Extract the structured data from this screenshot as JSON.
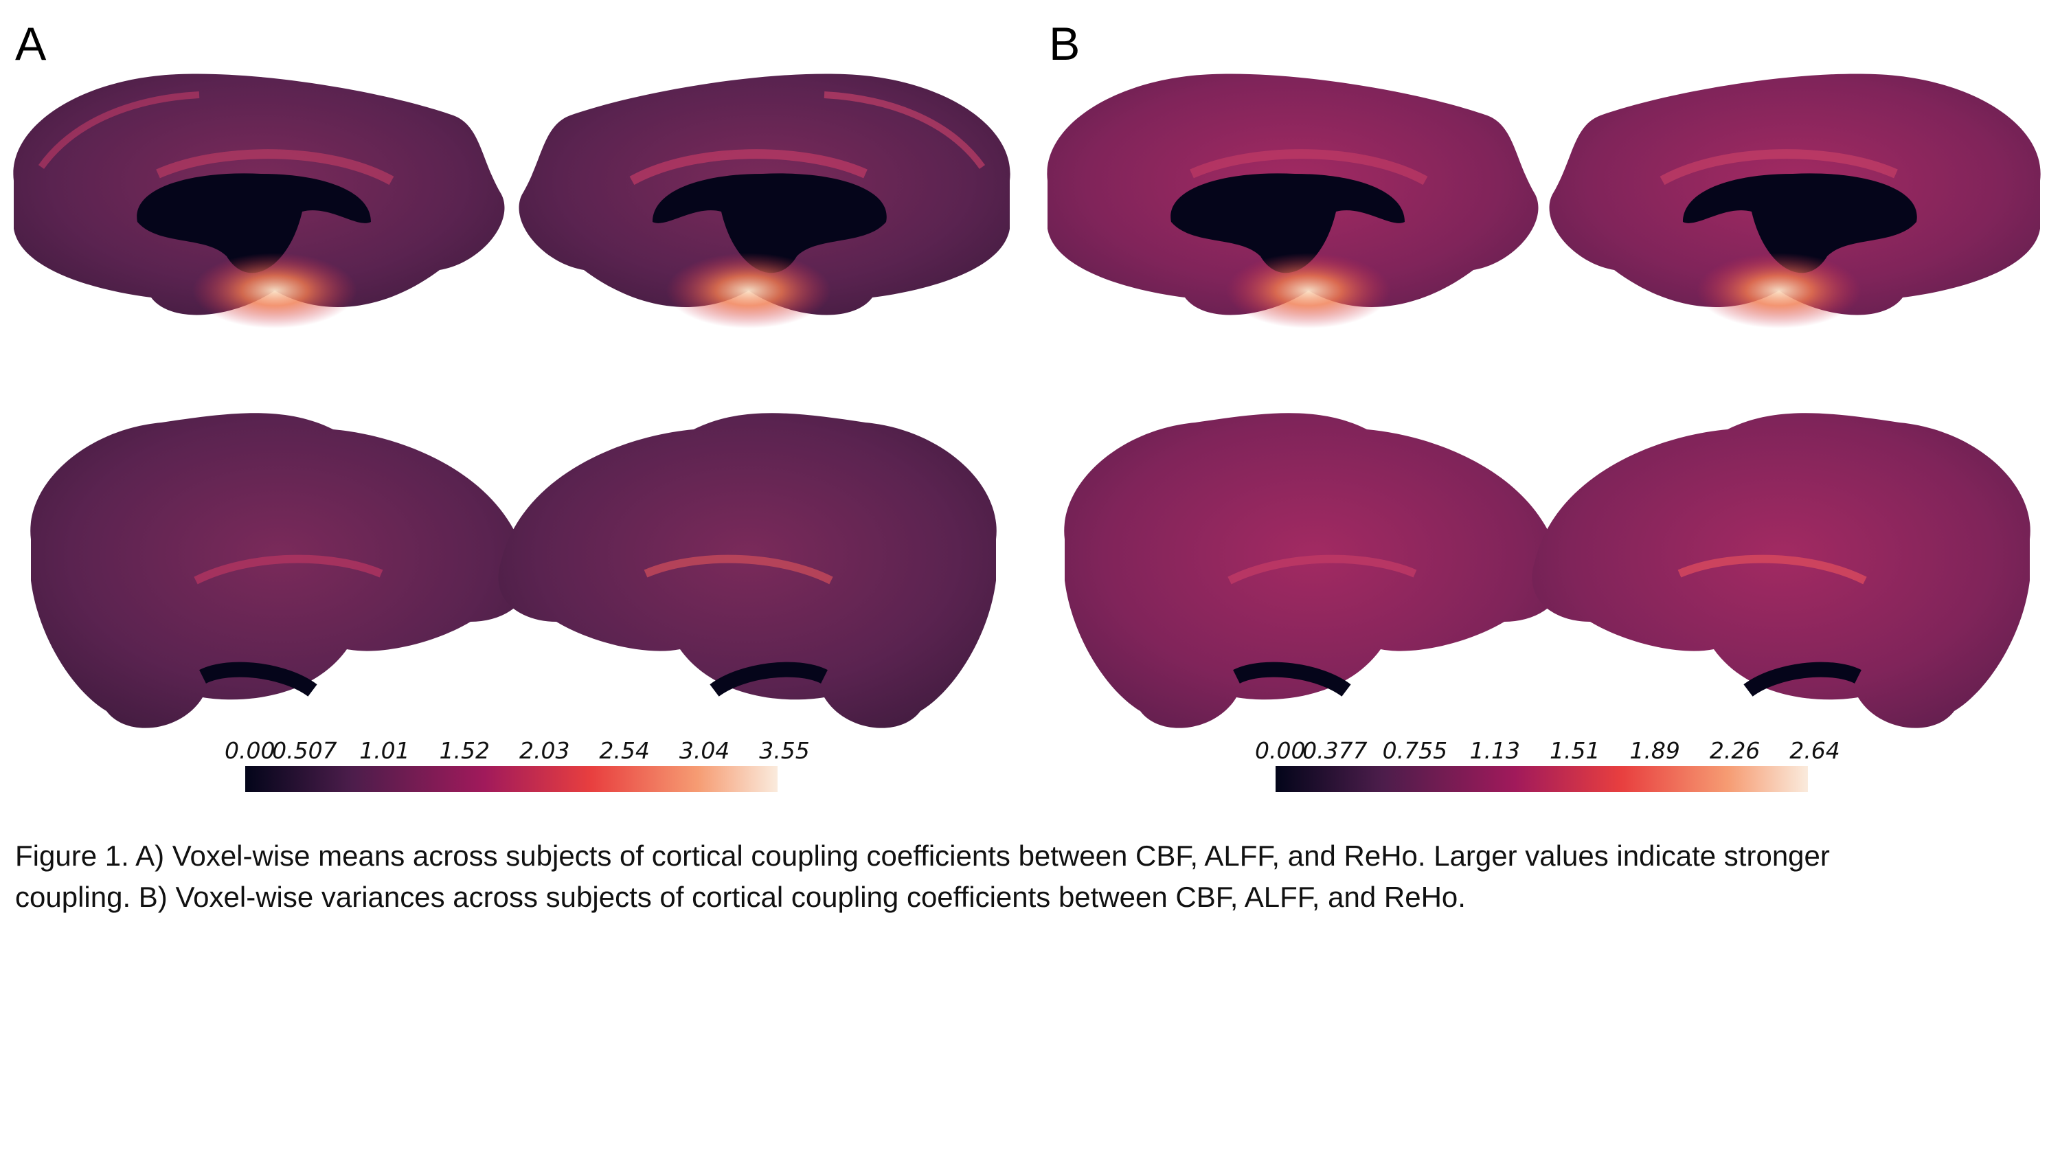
{
  "panels": [
    {
      "letter": "A",
      "colorbar": {
        "min": 0.0,
        "max": 3.55,
        "ticks": [
          "0.00",
          "0.507",
          "1.01",
          "1.52",
          "2.03",
          "2.54",
          "3.04",
          "3.55"
        ]
      }
    },
    {
      "letter": "B",
      "colorbar": {
        "min": 0.0,
        "max": 2.64,
        "ticks": [
          "0.00",
          "0.377",
          "0.755",
          "1.13",
          "1.51",
          "1.89",
          "2.26",
          "2.64"
        ]
      }
    }
  ],
  "colormap": [
    "#03051a",
    "#4c1d4b",
    "#a11a5b",
    "#e83f3f",
    "#f69c73",
    "#faebdd"
  ],
  "caption": {
    "line1": "Figure 1. A) Voxel-wise means across subjects of cortical coupling coefficients between CBF, ALFF, and ReHo. Larger values indicate stronger",
    "line2": "coupling. B) Voxel-wise variances across subjects of cortical coupling coefficients between CBF, ALFF, and ReHo."
  }
}
